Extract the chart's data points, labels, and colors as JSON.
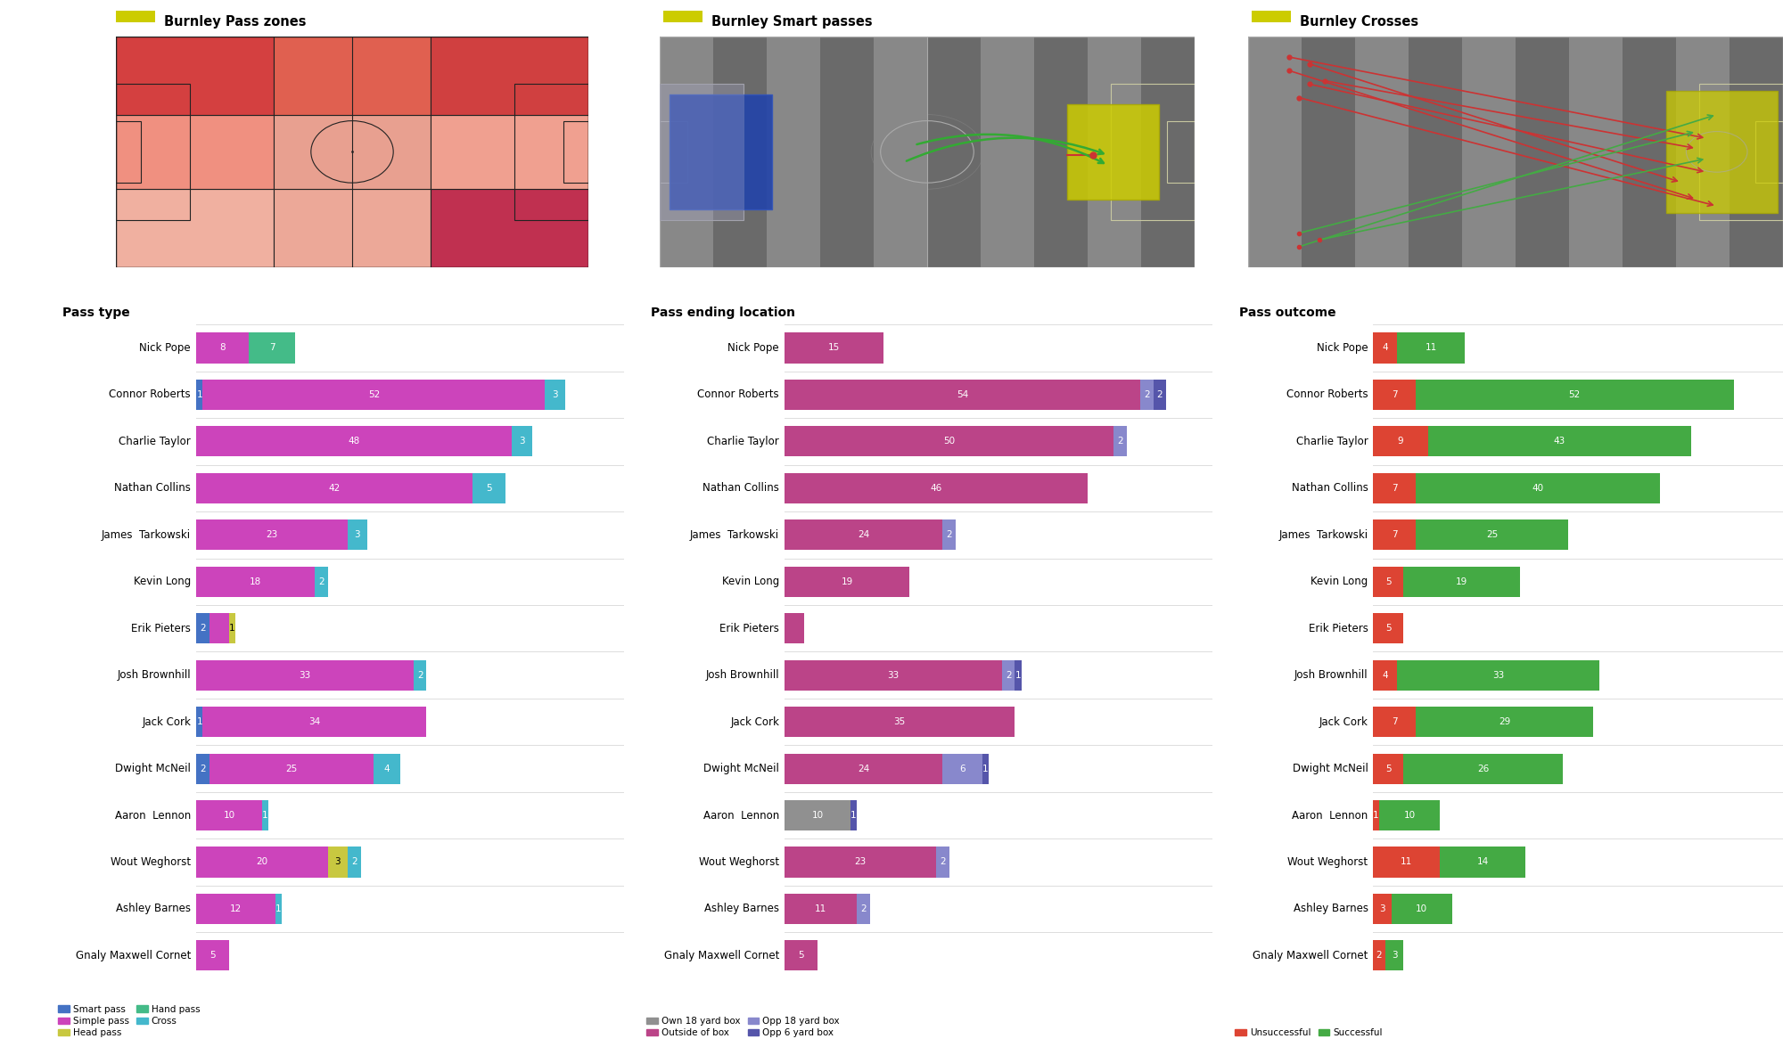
{
  "players": [
    "Nick Pope",
    "Connor Roberts",
    "Charlie Taylor",
    "Nathan Collins",
    "James  Tarkowski",
    "Kevin Long",
    "Erik Pieters",
    "Josh Brownhill",
    "Jack Cork",
    "Dwight McNeil",
    "Aaron  Lennon",
    "Wout Weghorst",
    "Ashley Barnes",
    "Gnaly Maxwell Cornet"
  ],
  "pass_type": {
    "smart_pass": [
      0,
      1,
      0,
      0,
      0,
      0,
      2,
      0,
      1,
      2,
      0,
      0,
      0,
      0
    ],
    "simple_pass": [
      8,
      52,
      48,
      42,
      23,
      18,
      3,
      33,
      34,
      25,
      10,
      20,
      12,
      5
    ],
    "head_pass": [
      0,
      0,
      0,
      0,
      0,
      0,
      1,
      0,
      0,
      0,
      0,
      3,
      0,
      0
    ],
    "hand_pass": [
      7,
      0,
      0,
      0,
      0,
      0,
      0,
      0,
      0,
      0,
      0,
      0,
      0,
      0
    ],
    "cross": [
      0,
      3,
      3,
      5,
      3,
      2,
      0,
      2,
      0,
      4,
      1,
      2,
      1,
      0
    ]
  },
  "pass_location": {
    "own_18": [
      0,
      0,
      0,
      0,
      0,
      0,
      0,
      0,
      0,
      0,
      10,
      0,
      0,
      0
    ],
    "outside_box": [
      15,
      54,
      50,
      46,
      24,
      19,
      3,
      33,
      35,
      24,
      0,
      23,
      11,
      5
    ],
    "opp_18": [
      0,
      2,
      2,
      0,
      2,
      0,
      0,
      2,
      0,
      6,
      0,
      2,
      2,
      0
    ],
    "opp_6": [
      0,
      2,
      0,
      0,
      0,
      0,
      0,
      1,
      0,
      1,
      1,
      0,
      0,
      0
    ]
  },
  "pass_outcome": {
    "unsuccessful": [
      4,
      7,
      9,
      7,
      7,
      5,
      5,
      4,
      7,
      5,
      1,
      11,
      3,
      2
    ],
    "successful": [
      11,
      52,
      43,
      40,
      25,
      19,
      0,
      33,
      29,
      26,
      10,
      14,
      10,
      3
    ]
  },
  "heatmap_grid": [
    [
      "#d44040",
      "#e06050",
      "#d04040"
    ],
    [
      "#f09080",
      "#e8a090",
      "#f0a090"
    ],
    [
      "#f0b0a0",
      "#eca898",
      "#c03050"
    ]
  ],
  "colors": {
    "smart_pass": "#4472c4",
    "simple_pass": "#cc44bb",
    "head_pass": "#c8c840",
    "hand_pass": "#44bb88",
    "cross": "#44b8cc",
    "own_18": "#909090",
    "outside_box": "#bb4488",
    "opp_18": "#8888cc",
    "opp_6": "#5555aa",
    "unsuccessful": "#dd4433",
    "successful": "#44aa44"
  },
  "section_titles": [
    "Pass type",
    "Pass ending location",
    "Pass outcome"
  ],
  "pitch_titles": [
    "Burnley Pass zones",
    "Burnley Smart passes",
    "Burnley Crosses"
  ]
}
